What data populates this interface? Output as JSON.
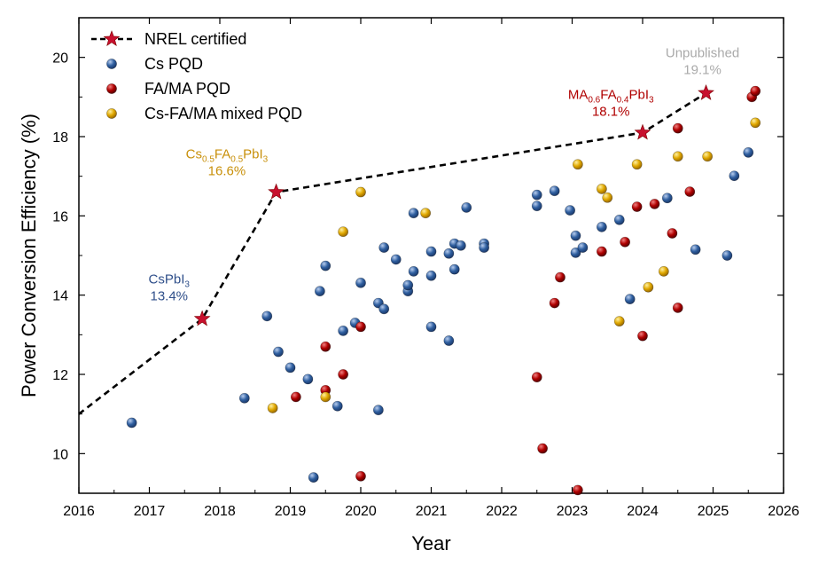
{
  "chart_data": {
    "type": "scatter",
    "xlabel": "Year",
    "ylabel": "Power Conversion Efficiency (%)",
    "xlim": [
      2016,
      2026
    ],
    "ylim": [
      9,
      21
    ],
    "x_ticks": [
      "2016",
      "2017",
      "2018",
      "2019",
      "2020",
      "2021",
      "2022",
      "2023",
      "2024",
      "2025",
      "2026"
    ],
    "y_ticks": [
      "10",
      "12",
      "14",
      "16",
      "18",
      "20"
    ],
    "legend": {
      "position": "top-left",
      "entries": [
        "NREL certified",
        "Cs PQD",
        "FA/MA PQD",
        "Cs-FA/MA mixed PQD"
      ]
    },
    "colors": {
      "nrel_star": "#c8102e",
      "nrel_line": "#000000",
      "cs": "#2f5fa0",
      "fama": "#b00000",
      "mixed": "#e0a800",
      "cs_label": "#2f4f8a",
      "fama_label": "#b00000",
      "mixed_label": "#c8900a",
      "unpub_label": "#aaaaaa"
    },
    "nrel_line": [
      [
        2016.0,
        11.0
      ],
      [
        2017.75,
        13.4
      ],
      [
        2018.8,
        16.6
      ],
      [
        2024.0,
        18.1
      ],
      [
        2024.9,
        19.1
      ]
    ],
    "nrel_points": [
      [
        2017.75,
        13.4
      ],
      [
        2018.8,
        16.6
      ],
      [
        2024.0,
        18.1
      ],
      [
        2024.9,
        19.1
      ]
    ],
    "annotations": [
      {
        "pre": "CsPbI",
        "sub": "3",
        "post": "",
        "value": "13.4%",
        "x": 2017.28,
        "y": 14.3,
        "color": "#2f4f8a"
      },
      {
        "pre": "Cs",
        "sub1": "0.5",
        "mid": "FA",
        "sub2": "0.5",
        "tail": "PbI",
        "sub3": "3",
        "value": "16.6%",
        "x": 2018.1,
        "y": 17.45,
        "color": "#c8900a"
      },
      {
        "pre": "MA",
        "sub1": "0.6",
        "mid": "FA",
        "sub2": "0.4",
        "tail": "PbI",
        "sub3": "3",
        "value": "18.1%",
        "x": 2023.55,
        "y": 18.95,
        "color": "#b00000"
      },
      {
        "pre": "Unpublished",
        "value": "19.1%",
        "x": 2024.85,
        "y": 20.0,
        "color": "#aaaaaa"
      }
    ],
    "series": [
      {
        "name": "Cs PQD",
        "points": [
          [
            2016.75,
            10.78
          ],
          [
            2018.35,
            11.4
          ],
          [
            2018.67,
            13.47
          ],
          [
            2018.83,
            12.57
          ],
          [
            2019.0,
            12.17
          ],
          [
            2019.25,
            11.88
          ],
          [
            2019.33,
            9.4
          ],
          [
            2019.42,
            14.1
          ],
          [
            2019.5,
            14.74
          ],
          [
            2019.67,
            11.2
          ],
          [
            2019.75,
            13.1
          ],
          [
            2019.92,
            13.3
          ],
          [
            2020.0,
            14.31
          ],
          [
            2020.25,
            13.8
          ],
          [
            2020.25,
            11.1
          ],
          [
            2020.33,
            15.2
          ],
          [
            2020.33,
            13.65
          ],
          [
            2020.5,
            14.9
          ],
          [
            2020.67,
            14.1
          ],
          [
            2020.67,
            14.25
          ],
          [
            2020.75,
            16.07
          ],
          [
            2020.75,
            14.6
          ],
          [
            2021.0,
            15.1
          ],
          [
            2021.0,
            14.49
          ],
          [
            2021.0,
            13.2
          ],
          [
            2021.25,
            12.85
          ],
          [
            2021.25,
            15.05
          ],
          [
            2021.33,
            15.3
          ],
          [
            2021.33,
            14.65
          ],
          [
            2021.42,
            15.25
          ],
          [
            2021.5,
            16.21
          ],
          [
            2021.75,
            15.3
          ],
          [
            2021.75,
            15.2
          ],
          [
            2022.5,
            16.53
          ],
          [
            2022.5,
            16.25
          ],
          [
            2022.75,
            16.63
          ],
          [
            2022.97,
            16.14
          ],
          [
            2023.05,
            15.5
          ],
          [
            2023.05,
            15.07
          ],
          [
            2023.15,
            15.2
          ],
          [
            2023.42,
            15.72
          ],
          [
            2023.67,
            15.9
          ],
          [
            2023.82,
            13.9
          ],
          [
            2024.35,
            16.45
          ],
          [
            2024.75,
            15.15
          ],
          [
            2025.2,
            15.0
          ],
          [
            2025.3,
            17.01
          ],
          [
            2025.5,
            17.6
          ]
        ]
      },
      {
        "name": "FA/MA PQD",
        "points": [
          [
            2019.08,
            11.43
          ],
          [
            2019.5,
            12.7
          ],
          [
            2019.5,
            11.6
          ],
          [
            2019.75,
            12.0
          ],
          [
            2020.0,
            13.2
          ],
          [
            2020.0,
            9.43
          ],
          [
            2022.5,
            11.93
          ],
          [
            2022.58,
            10.13
          ],
          [
            2022.75,
            13.8
          ],
          [
            2022.83,
            14.45
          ],
          [
            2023.08,
            9.08
          ],
          [
            2023.42,
            15.1
          ],
          [
            2023.75,
            15.34
          ],
          [
            2023.92,
            16.23
          ],
          [
            2024.0,
            12.97
          ],
          [
            2024.17,
            16.3
          ],
          [
            2024.42,
            15.56
          ],
          [
            2024.5,
            18.21
          ],
          [
            2024.5,
            13.68
          ],
          [
            2024.67,
            16.61
          ],
          [
            2025.55,
            19.0
          ],
          [
            2025.6,
            19.15
          ]
        ]
      },
      {
        "name": "Cs-FA/MA mixed PQD",
        "points": [
          [
            2018.75,
            11.15
          ],
          [
            2019.5,
            11.43
          ],
          [
            2019.75,
            15.6
          ],
          [
            2020.0,
            16.6
          ],
          [
            2020.92,
            16.07
          ],
          [
            2023.08,
            17.3
          ],
          [
            2023.42,
            16.68
          ],
          [
            2023.5,
            16.46
          ],
          [
            2023.67,
            13.34
          ],
          [
            2023.92,
            17.3
          ],
          [
            2024.08,
            14.2
          ],
          [
            2024.3,
            14.6
          ],
          [
            2024.5,
            17.5
          ],
          [
            2024.92,
            17.5
          ],
          [
            2025.6,
            18.35
          ]
        ]
      }
    ]
  }
}
